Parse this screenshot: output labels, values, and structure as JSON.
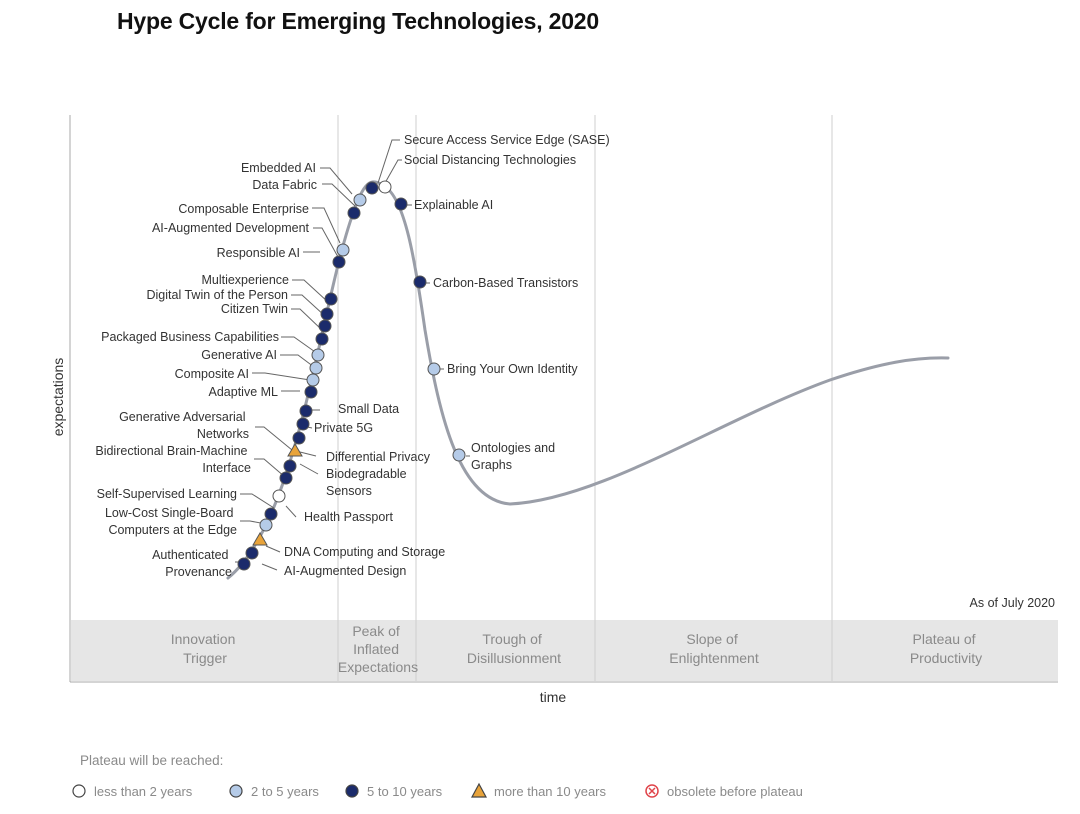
{
  "title": "Hype Cycle for Emerging Technologies, 2020",
  "axis": {
    "y_label": "expectations",
    "x_label": "time"
  },
  "as_of": "As of July 2020",
  "phases": [
    {
      "lines": [
        "Innovation",
        "Trigger"
      ]
    },
    {
      "lines": [
        "Peak of",
        "Inflated",
        "Expectations"
      ]
    },
    {
      "lines": [
        "Trough of",
        "Disillusionment"
      ]
    },
    {
      "lines": [
        "Slope of",
        "Enlightenment"
      ]
    },
    {
      "lines": [
        "Plateau of",
        "Productivity"
      ]
    }
  ],
  "legend": {
    "title": "Plateau will be reached:",
    "items": [
      {
        "label": "less than 2 years",
        "marker": "white-circle"
      },
      {
        "label": "2 to 5 years",
        "marker": "light-blue-circle"
      },
      {
        "label": "5 to 10 years",
        "marker": "dark-blue-circle"
      },
      {
        "label": "more than 10 years",
        "marker": "orange-triangle"
      },
      {
        "label": "obsolete before plateau",
        "marker": "red-x-circle"
      }
    ]
  },
  "colors": {
    "curve": "#9a9ea8",
    "dark_blue": "#1b2b6b",
    "light_blue": "#b5cbe8",
    "white": "#ffffff",
    "orange": "#e8a33a",
    "red": "#e0454b",
    "grid": "#cfcfcf",
    "band": "#e6e6e6"
  },
  "technologies": [
    {
      "name": "Secure Access Service Edge (SASE)",
      "plateau": "5 to 10 years"
    },
    {
      "name": "Social Distancing Technologies",
      "plateau": "less than 2 years"
    },
    {
      "name": "Embedded AI",
      "plateau": "5 to 10 years"
    },
    {
      "name": "Data Fabric",
      "plateau": "2 to 5 years"
    },
    {
      "name": "Explainable AI",
      "plateau": "5 to 10 years"
    },
    {
      "name": "Composable Enterprise",
      "plateau": "5 to 10 years"
    },
    {
      "name": "AI-Augmented Development",
      "plateau": "2 to 5 years"
    },
    {
      "name": "Responsible AI",
      "plateau": "5 to 10 years"
    },
    {
      "name": "Carbon-Based Transistors",
      "plateau": "5 to 10 years"
    },
    {
      "name": "Multiexperience",
      "plateau": "5 to 10 years"
    },
    {
      "name": "Digital Twin of the Person",
      "plateau": "5 to 10 years"
    },
    {
      "name": "Citizen Twin",
      "plateau": "5 to 10 years"
    },
    {
      "name": "Packaged Business Capabilities",
      "plateau": "5 to 10 years"
    },
    {
      "name": "Generative AI",
      "plateau": "2 to 5 years"
    },
    {
      "name": "Composite AI",
      "plateau": "2 to 5 years"
    },
    {
      "name": "Adaptive ML",
      "plateau": "5 to 10 years"
    },
    {
      "name": "Bring Your Own Identity",
      "plateau": "2 to 5 years"
    },
    {
      "name": "Small Data",
      "plateau": "5 to 10 years"
    },
    {
      "name": "Private 5G",
      "plateau": "5 to 10 years"
    },
    {
      "name": "Generative Adversarial Networks",
      "plateau": "5 to 10 years"
    },
    {
      "name": "Differential Privacy",
      "plateau": "more than 10 years"
    },
    {
      "name": "Ontologies and Graphs",
      "plateau": "2 to 5 years"
    },
    {
      "name": "Bidirectional Brain-Machine Interface",
      "plateau": "5 to 10 years"
    },
    {
      "name": "Biodegradable Sensors",
      "plateau": "5 to 10 years"
    },
    {
      "name": "Self-Supervised Learning",
      "plateau": "less than 2 years"
    },
    {
      "name": "Health Passport",
      "plateau": "5 to 10 years"
    },
    {
      "name": "Low-Cost Single-Board Computers at the Edge",
      "plateau": "2 to 5 years"
    },
    {
      "name": "DNA Computing and Storage",
      "plateau": "more than 10 years"
    },
    {
      "name": "Authenticated Provenance",
      "plateau": "5 to 10 years"
    },
    {
      "name": "AI-Augmented Design",
      "plateau": "5 to 10 years"
    }
  ]
}
